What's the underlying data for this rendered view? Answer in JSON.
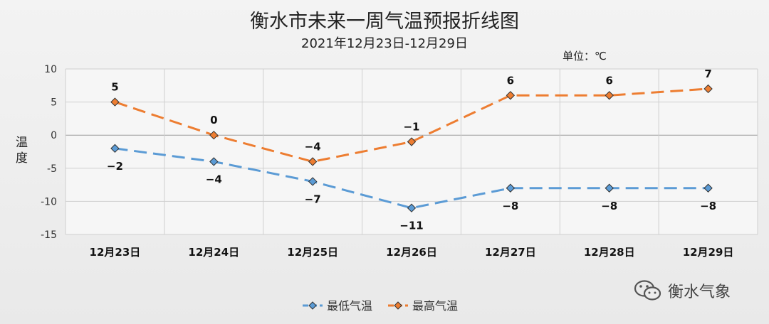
{
  "title": "衡水市未来一周气温预报折线图",
  "subtitle": "2021年12月23日-12月29日",
  "unit": "单位：℃",
  "ylabel": "温度",
  "watermark": "衡水气象",
  "chart_data": {
    "type": "line",
    "categories": [
      "12月23日",
      "12月24日",
      "12月25日",
      "12月26日",
      "12月27日",
      "12月28日",
      "12月29日"
    ],
    "series": [
      {
        "name": "最低气温",
        "values": [
          -2,
          -4,
          -7,
          -11,
          -8,
          -8,
          -8
        ],
        "labels": [
          "−2",
          "−4",
          "−7",
          "−11",
          "−8",
          "−8",
          "−8"
        ],
        "color": "#5b9bd5",
        "label_position": "below"
      },
      {
        "name": "最高气温",
        "values": [
          5,
          0,
          -4,
          -1,
          6,
          6,
          7
        ],
        "labels": [
          "5",
          "0",
          "−4",
          "−1",
          "6",
          "6",
          "7"
        ],
        "color": "#ed7d31",
        "label_position": "above"
      }
    ],
    "yticks": [
      "10",
      "5",
      "0",
      "-5",
      "-10",
      "-15"
    ],
    "ylim": [
      -15,
      10
    ],
    "grid": true,
    "line_style": "dashed",
    "marker": "diamond",
    "legend_position": "bottom"
  }
}
